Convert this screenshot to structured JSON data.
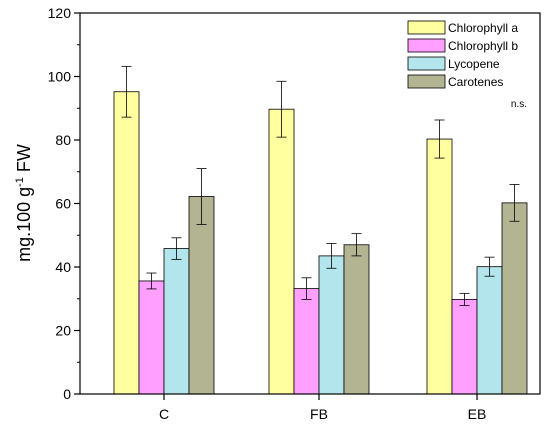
{
  "chart_data": {
    "type": "bar",
    "categories": [
      "C",
      "FB",
      "EB"
    ],
    "series": [
      {
        "name": "Chlorophyll a",
        "color": "#FFFFA0",
        "values": [
          95.2,
          89.7,
          80.3
        ],
        "errors": [
          8.0,
          8.8,
          6.0
        ]
      },
      {
        "name": "Chlorophyll b",
        "color": "#FFA0FF",
        "values": [
          35.6,
          33.2,
          29.8
        ],
        "errors": [
          2.5,
          3.4,
          1.9
        ]
      },
      {
        "name": "Lycopene",
        "color": "#B3E5EC",
        "values": [
          45.8,
          43.5,
          40.1
        ],
        "errors": [
          3.4,
          3.9,
          3.0
        ]
      },
      {
        "name": "Carotenes",
        "color": "#B3B592",
        "values": [
          62.2,
          47.0,
          60.2
        ],
        "errors": [
          8.8,
          3.5,
          5.8
        ]
      }
    ],
    "ylim": [
      0,
      120
    ],
    "yticks": [
      0,
      20,
      40,
      60,
      80,
      100,
      120
    ],
    "ylabel": "mg.100 g",
    "ylabel_sup": "-1",
    "ylabel_suffix": " FW",
    "annotation": "n.s.",
    "legend_position": "top-right",
    "grid": false
  }
}
